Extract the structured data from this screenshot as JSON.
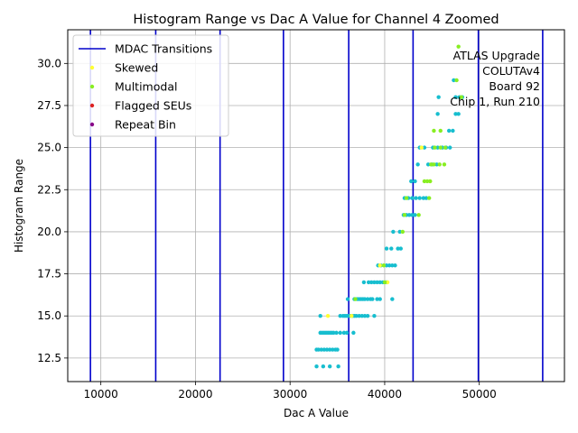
{
  "chart_data": {
    "type": "scatter",
    "title": "Histogram Range vs Dac A Value for Channel 4 Zoomed",
    "xlabel": "Dac A Value",
    "ylabel": "Histogram Range",
    "xlim": [
      6500,
      59000
    ],
    "ylim": [
      11.1,
      32
    ],
    "xticks": [
      10000,
      20000,
      30000,
      40000,
      50000
    ],
    "yticks": [
      12.5,
      15.0,
      17.5,
      20.0,
      22.5,
      25.0,
      27.5,
      30.0
    ],
    "grid": true,
    "legend_position": "upper-left",
    "legend": [
      {
        "label": "MDAC Transitions",
        "kind": "line",
        "color": "#0000cc"
      },
      {
        "label": "Skewed",
        "kind": "dot",
        "color": "#ffff33"
      },
      {
        "label": "Multimodal",
        "kind": "dot",
        "color": "#88ee22"
      },
      {
        "label": "Flagged SEUs",
        "kind": "dot",
        "color": "#dd2222"
      },
      {
        "label": "Repeat Bin",
        "kind": "dot",
        "color": "#880088"
      }
    ],
    "annotation": [
      "ATLAS Upgrade",
      "COLUTAv4",
      "Board 92",
      "Chip 1, Run 210"
    ],
    "mdac_transitions": [
      8900,
      15800,
      22600,
      29300,
      36200,
      43000,
      49900,
      56700
    ],
    "series": [
      {
        "kind": "normal",
        "color": "#17becf",
        "points": [
          [
            32800,
            12
          ],
          [
            33500,
            12
          ],
          [
            34200,
            12
          ],
          [
            35100,
            12
          ],
          [
            32800,
            13
          ],
          [
            33000,
            13
          ],
          [
            33300,
            13
          ],
          [
            33600,
            13
          ],
          [
            33900,
            13
          ],
          [
            34200,
            13
          ],
          [
            34500,
            13
          ],
          [
            34800,
            13
          ],
          [
            35000,
            13
          ],
          [
            33200,
            14
          ],
          [
            33400,
            14
          ],
          [
            33600,
            14
          ],
          [
            33800,
            14
          ],
          [
            34000,
            14
          ],
          [
            34200,
            14
          ],
          [
            34400,
            14
          ],
          [
            34600,
            14
          ],
          [
            34900,
            14
          ],
          [
            35300,
            14
          ],
          [
            35700,
            14
          ],
          [
            36000,
            14
          ],
          [
            36700,
            14
          ],
          [
            33200,
            15
          ],
          [
            35300,
            15
          ],
          [
            35600,
            15
          ],
          [
            35800,
            15
          ],
          [
            36000,
            15
          ],
          [
            36200,
            15
          ],
          [
            36400,
            15
          ],
          [
            36600,
            15
          ],
          [
            36800,
            15
          ],
          [
            37000,
            15
          ],
          [
            37300,
            15
          ],
          [
            37600,
            15
          ],
          [
            37900,
            15
          ],
          [
            38200,
            15
          ],
          [
            38900,
            15
          ],
          [
            36100,
            16
          ],
          [
            36800,
            16
          ],
          [
            37100,
            16
          ],
          [
            37300,
            16
          ],
          [
            37500,
            16
          ],
          [
            37700,
            16
          ],
          [
            37900,
            16
          ],
          [
            38200,
            16
          ],
          [
            38500,
            16
          ],
          [
            38700,
            16
          ],
          [
            39200,
            16
          ],
          [
            39500,
            16
          ],
          [
            40800,
            16
          ],
          [
            37800,
            17
          ],
          [
            38300,
            17
          ],
          [
            38600,
            17
          ],
          [
            38900,
            17
          ],
          [
            39200,
            17
          ],
          [
            39500,
            17
          ],
          [
            39800,
            17
          ],
          [
            40200,
            17
          ],
          [
            39300,
            18
          ],
          [
            39600,
            18
          ],
          [
            40200,
            18
          ],
          [
            40500,
            18
          ],
          [
            40800,
            18
          ],
          [
            41100,
            18
          ],
          [
            40200,
            19
          ],
          [
            40700,
            19
          ],
          [
            41400,
            19
          ],
          [
            41700,
            19
          ],
          [
            40900,
            20
          ],
          [
            41600,
            20
          ],
          [
            42000,
            21
          ],
          [
            42300,
            21
          ],
          [
            42600,
            21
          ],
          [
            42900,
            21
          ],
          [
            43200,
            21
          ],
          [
            42100,
            22
          ],
          [
            42500,
            22
          ],
          [
            42900,
            22
          ],
          [
            43300,
            22
          ],
          [
            43700,
            22
          ],
          [
            44100,
            22
          ],
          [
            44400,
            22
          ],
          [
            42800,
            23
          ],
          [
            43200,
            23
          ],
          [
            43500,
            24
          ],
          [
            44600,
            24
          ],
          [
            45000,
            24
          ],
          [
            45500,
            24
          ],
          [
            43700,
            25
          ],
          [
            44200,
            25
          ],
          [
            45100,
            25
          ],
          [
            45600,
            25
          ],
          [
            46100,
            25
          ],
          [
            46500,
            25
          ],
          [
            46900,
            25
          ],
          [
            46800,
            26
          ],
          [
            47200,
            26
          ],
          [
            45600,
            27
          ],
          [
            47500,
            27
          ],
          [
            47800,
            27
          ],
          [
            45700,
            28
          ],
          [
            47500,
            28
          ],
          [
            47900,
            28
          ],
          [
            48200,
            28
          ],
          [
            47300,
            29
          ]
        ]
      },
      {
        "kind": "Skewed",
        "color": "#ffff33",
        "points": [
          [
            34000,
            15
          ],
          [
            36500,
            15
          ],
          [
            39500,
            18
          ],
          [
            40300,
            17
          ],
          [
            43900,
            25
          ],
          [
            44800,
            23
          ]
        ]
      },
      {
        "kind": "Multimodal",
        "color": "#88ee22",
        "points": [
          [
            36900,
            16
          ],
          [
            39900,
            18
          ],
          [
            40000,
            17
          ],
          [
            41900,
            20
          ],
          [
            42100,
            21
          ],
          [
            43600,
            21
          ],
          [
            42300,
            22
          ],
          [
            44700,
            22
          ],
          [
            44200,
            23
          ],
          [
            44500,
            23
          ],
          [
            44800,
            23
          ],
          [
            44900,
            24
          ],
          [
            45200,
            24
          ],
          [
            45800,
            24
          ],
          [
            46300,
            24
          ],
          [
            45300,
            25
          ],
          [
            45900,
            25
          ],
          [
            46400,
            25
          ],
          [
            45200,
            26
          ],
          [
            45900,
            26
          ],
          [
            47600,
            29
          ],
          [
            48100,
            28
          ],
          [
            47800,
            31
          ]
        ]
      }
    ]
  }
}
